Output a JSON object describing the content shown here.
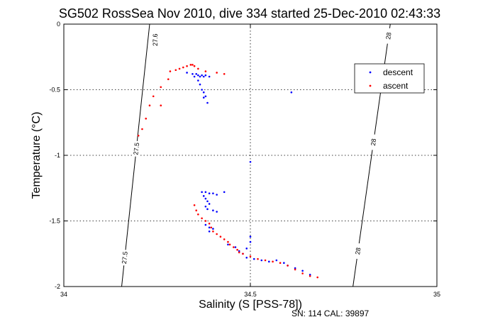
{
  "chart_data": {
    "type": "scatter",
    "title": "SG502 RossSea Nov 2010, dive 334 started 25-Dec-2010 02:43:33",
    "xlabel": "Salinity (S [PSS-78])",
    "ylabel": "Temperature (°C)",
    "footnote": "SN: 114  CAL: 39897",
    "xlim": [
      34,
      35
    ],
    "ylim": [
      -2,
      0
    ],
    "x_ticks": [
      "34",
      "34.5",
      "35"
    ],
    "y_ticks": [
      "0",
      "-0.5",
      "-1",
      "-1.5",
      "-2"
    ],
    "grid": true,
    "legend_position": "top-right",
    "colors": {
      "descent": "#0000ff",
      "ascent": "#ff0000",
      "isopycnal": "#000000"
    },
    "isopycnals": [
      {
        "label": "27.5",
        "top_salinity": 34.23,
        "bottom_salinity": 34.155,
        "label_temps": [
          -0.95,
          -1.78
        ]
      },
      {
        "label": "27.6",
        "top_salinity": 34.245,
        "label_temps": [
          -0.12
        ]
      },
      {
        "label": "28",
        "top_salinity": 34.875,
        "bottom_salinity": 34.775,
        "label_temps": [
          -0.09,
          -0.9,
          -1.73
        ]
      }
    ],
    "series": [
      {
        "name": "descent",
        "points": [
          [
            34.33,
            -0.37
          ],
          [
            34.345,
            -0.38
          ],
          [
            34.35,
            -0.4
          ],
          [
            34.355,
            -0.38
          ],
          [
            34.36,
            -0.39
          ],
          [
            34.365,
            -0.4
          ],
          [
            34.37,
            -0.39
          ],
          [
            34.375,
            -0.4
          ],
          [
            34.38,
            -0.39
          ],
          [
            34.39,
            -0.4
          ],
          [
            34.36,
            -0.43
          ],
          [
            34.365,
            -0.46
          ],
          [
            34.37,
            -0.5
          ],
          [
            34.375,
            -0.52
          ],
          [
            34.38,
            -0.55
          ],
          [
            34.375,
            -0.56
          ],
          [
            34.385,
            -0.6
          ],
          [
            34.61,
            -0.52
          ],
          [
            34.5,
            -1.05
          ],
          [
            34.37,
            -1.28
          ],
          [
            34.38,
            -1.28
          ],
          [
            34.39,
            -1.29
          ],
          [
            34.4,
            -1.29
          ],
          [
            34.41,
            -1.3
          ],
          [
            34.43,
            -1.28
          ],
          [
            34.375,
            -1.31
          ],
          [
            34.38,
            -1.33
          ],
          [
            34.385,
            -1.35
          ],
          [
            34.39,
            -1.37
          ],
          [
            34.38,
            -1.39
          ],
          [
            34.385,
            -1.41
          ],
          [
            34.4,
            -1.42
          ],
          [
            34.41,
            -1.43
          ],
          [
            34.38,
            -1.53
          ],
          [
            34.39,
            -1.55
          ],
          [
            34.4,
            -1.56
          ],
          [
            34.39,
            -1.58
          ],
          [
            34.5,
            -1.62
          ],
          [
            34.5,
            -1.66
          ],
          [
            34.49,
            -1.71
          ],
          [
            34.44,
            -1.68
          ],
          [
            34.46,
            -1.7
          ],
          [
            34.47,
            -1.73
          ],
          [
            34.48,
            -1.75
          ],
          [
            34.49,
            -1.78
          ],
          [
            34.51,
            -1.79
          ],
          [
            34.53,
            -1.8
          ],
          [
            34.55,
            -1.81
          ],
          [
            34.57,
            -1.8
          ],
          [
            34.59,
            -1.82
          ],
          [
            34.6,
            -1.84
          ],
          [
            34.62,
            -1.86
          ],
          [
            34.64,
            -1.88
          ],
          [
            34.66,
            -1.91
          ]
        ]
      },
      {
        "name": "ascent",
        "points": [
          [
            34.285,
            -0.36
          ],
          [
            34.3,
            -0.35
          ],
          [
            34.31,
            -0.34
          ],
          [
            34.32,
            -0.33
          ],
          [
            34.33,
            -0.32
          ],
          [
            34.34,
            -0.31
          ],
          [
            34.345,
            -0.31
          ],
          [
            34.35,
            -0.32
          ],
          [
            34.36,
            -0.34
          ],
          [
            34.38,
            -0.36
          ],
          [
            34.41,
            -0.37
          ],
          [
            34.43,
            -0.38
          ],
          [
            34.28,
            -0.42
          ],
          [
            34.26,
            -0.48
          ],
          [
            34.24,
            -0.55
          ],
          [
            34.23,
            -0.62
          ],
          [
            34.26,
            -0.62
          ],
          [
            34.22,
            -0.72
          ],
          [
            34.21,
            -0.8
          ],
          [
            34.2,
            -0.85
          ],
          [
            34.35,
            -1.38
          ],
          [
            34.355,
            -1.42
          ],
          [
            34.36,
            -1.45
          ],
          [
            34.37,
            -1.48
          ],
          [
            34.38,
            -1.5
          ],
          [
            34.39,
            -1.52
          ],
          [
            34.395,
            -1.55
          ],
          [
            34.4,
            -1.58
          ],
          [
            34.41,
            -1.6
          ],
          [
            34.42,
            -1.62
          ],
          [
            34.43,
            -1.64
          ],
          [
            34.44,
            -1.66
          ],
          [
            34.445,
            -1.68
          ],
          [
            34.455,
            -1.7
          ],
          [
            34.465,
            -1.72
          ],
          [
            34.47,
            -1.74
          ],
          [
            34.48,
            -1.75
          ],
          [
            34.5,
            -1.77
          ],
          [
            34.52,
            -1.79
          ],
          [
            34.54,
            -1.8
          ],
          [
            34.56,
            -1.81
          ],
          [
            34.58,
            -1.82
          ],
          [
            34.6,
            -1.84
          ],
          [
            34.62,
            -1.87
          ],
          [
            34.64,
            -1.9
          ],
          [
            34.66,
            -1.92
          ],
          [
            34.68,
            -1.93
          ]
        ]
      }
    ]
  }
}
